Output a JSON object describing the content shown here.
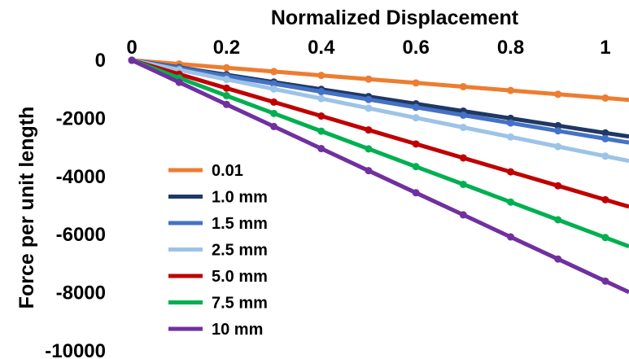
{
  "chart_data": {
    "type": "line",
    "xlabel": "Normalized Displacement",
    "ylabel": "Force per unit length",
    "xlim": [
      0,
      1.05
    ],
    "ylim": [
      -10000,
      0
    ],
    "x_axis_position": "top",
    "x_ticks": [
      0,
      0.2,
      0.4,
      0.6,
      0.8,
      1
    ],
    "x_tick_labels": [
      "0",
      "0.2",
      "0.4",
      "0.6",
      "0.8",
      "1"
    ],
    "y_ticks": [
      0,
      -2000,
      -4000,
      -6000,
      -8000,
      -10000
    ],
    "y_tick_labels": [
      "0",
      "-2000",
      "-4000",
      "-6000",
      "-8000",
      "-10000"
    ],
    "grid": false,
    "legend_position": "bottom-left",
    "x": [
      0,
      0.1,
      0.2,
      0.3,
      0.4,
      0.5,
      0.6,
      0.7,
      0.8,
      0.9,
      1.0,
      1.05
    ],
    "series": [
      {
        "name": "0.01",
        "color": "#ED7D31",
        "values": [
          0,
          -130,
          -260,
          -390,
          -520,
          -650,
          -780,
          -910,
          -1040,
          -1170,
          -1300,
          -1365
        ]
      },
      {
        "name": "1.0 mm",
        "color": "#1F3864",
        "values": [
          0,
          -250,
          -500,
          -750,
          -1000,
          -1250,
          -1500,
          -1750,
          -2000,
          -2250,
          -2500,
          -2625
        ]
      },
      {
        "name": "1.5 mm",
        "color": "#4472C4",
        "values": [
          0,
          -270,
          -540,
          -810,
          -1080,
          -1350,
          -1620,
          -1890,
          -2160,
          -2430,
          -2700,
          -2835
        ]
      },
      {
        "name": "2.5 mm",
        "color": "#9DC3E6",
        "values": [
          0,
          -330,
          -660,
          -990,
          -1320,
          -1650,
          -1980,
          -2310,
          -2640,
          -2970,
          -3300,
          -3465
        ]
      },
      {
        "name": "5.0 mm",
        "color": "#C00000",
        "values": [
          0,
          -480,
          -960,
          -1440,
          -1920,
          -2400,
          -2880,
          -3360,
          -3840,
          -4320,
          -4800,
          -5040
        ]
      },
      {
        "name": "7.5 mm",
        "color": "#00B050",
        "values": [
          0,
          -610,
          -1220,
          -1830,
          -2440,
          -3050,
          -3660,
          -4270,
          -4880,
          -5490,
          -6100,
          -6405
        ]
      },
      {
        "name": "10 mm",
        "color": "#7030A0",
        "values": [
          0,
          -760,
          -1520,
          -2280,
          -3040,
          -3800,
          -4560,
          -5320,
          -6080,
          -6840,
          -7600,
          -7980
        ]
      }
    ]
  }
}
